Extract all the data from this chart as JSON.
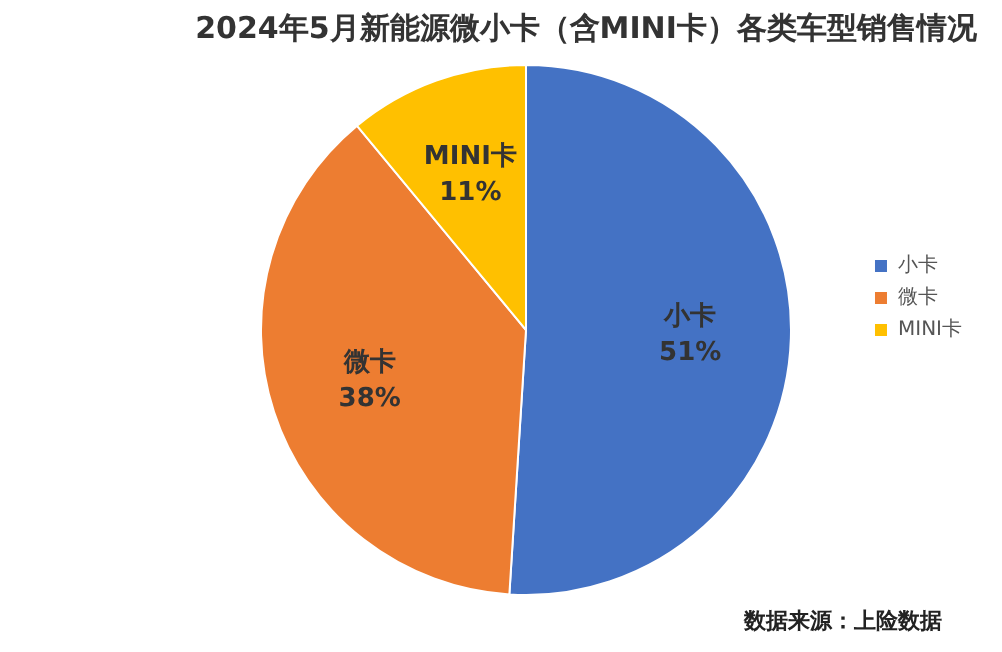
{
  "chart_data": {
    "type": "pie",
    "title": "2024年5月新能源微小卡（含MINI卡）各类车型销售情况",
    "categories": [
      "小卡",
      "微卡",
      "MINI卡"
    ],
    "values": [
      51,
      38,
      11
    ],
    "colors": [
      "#4472c4",
      "#ed7d31",
      "#ffc000"
    ],
    "value_labels": [
      "51%",
      "38%",
      "11%"
    ],
    "legend": "right",
    "annotations": [
      "数据来源：上险数据"
    ]
  }
}
